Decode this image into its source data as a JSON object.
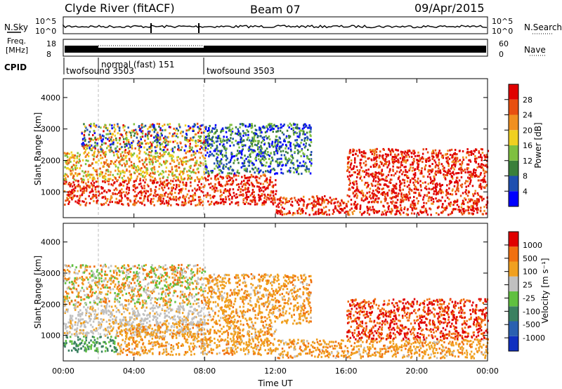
{
  "header": {
    "station": "Clyde River (fitACF)",
    "beam": "Beam 07",
    "date": "09/Apr/2015"
  },
  "noise_panel": {
    "left_label": "N.Sky",
    "right_label": "N.Search",
    "left_ticks": [
      "10^5",
      "10^0"
    ],
    "right_ticks": [
      "10^5",
      "10^0"
    ]
  },
  "freq_panel": {
    "left_label_1": "Freq.",
    "left_label_2": "[MHz]",
    "right_label": "Nave",
    "left_ticks": [
      "18",
      "8"
    ],
    "right_ticks": [
      "60",
      "0"
    ]
  },
  "cpid": {
    "label": "CPID",
    "segments": [
      {
        "name": "twofsound 3503",
        "start_hour": 0.0
      },
      {
        "name": "normal (fast) 151",
        "start_hour": 2.0
      },
      {
        "name": "twofsound 3503",
        "start_hour": 8.0
      }
    ]
  },
  "chart_data": [
    {
      "type": "heatmap",
      "quantity": "Power",
      "ylabel": "Slant Range [km]",
      "xlabel": "Time UT",
      "x_ticks": [
        "00:00",
        "04:00",
        "08:00",
        "12:00",
        "16:00",
        "20:00",
        "00:00"
      ],
      "x_range_hours": [
        0,
        24
      ],
      "y_ticks": [
        1000,
        2000,
        3000,
        4000
      ],
      "ylim": [
        180,
        4600
      ],
      "colorbar": {
        "label": "Power [dB]",
        "ticks": [
          4,
          8,
          12,
          16,
          20,
          24,
          28
        ],
        "range": [
          0,
          30
        ],
        "colors": [
          "#0000ff",
          "#1f4fb0",
          "#3a7f3a",
          "#7fc040",
          "#f0d020",
          "#f09020",
          "#e85010",
          "#e00000"
        ]
      },
      "echo_bands": [
        {
          "hours": [
            0,
            8
          ],
          "range_km": [
            600,
            1400
          ],
          "level": "high"
        },
        {
          "hours": [
            0,
            8
          ],
          "range_km": [
            1400,
            2300
          ],
          "level": "medium"
        },
        {
          "hours": [
            1,
            8
          ],
          "range_km": [
            2300,
            3200
          ],
          "level": "mixed"
        },
        {
          "hours": [
            8,
            12
          ],
          "range_km": [
            600,
            1600
          ],
          "level": "high"
        },
        {
          "hours": [
            8,
            14
          ],
          "range_km": [
            1600,
            3200
          ],
          "level": "low"
        },
        {
          "hours": [
            12,
            24
          ],
          "range_km": [
            300,
            900
          ],
          "level": "high"
        },
        {
          "hours": [
            16,
            24
          ],
          "range_km": [
            900,
            2400
          ],
          "level": "high"
        }
      ]
    },
    {
      "type": "heatmap",
      "quantity": "Velocity",
      "ylabel": "Slant Range [km]",
      "xlabel": "Time UT",
      "x_ticks": [
        "00:00",
        "04:00",
        "08:00",
        "12:00",
        "16:00",
        "20:00",
        "00:00"
      ],
      "x_range_hours": [
        0,
        24
      ],
      "y_ticks": [
        1000,
        2000,
        3000,
        4000
      ],
      "ylim": [
        180,
        4600
      ],
      "colorbar": {
        "label": "Velocity [m s⁻¹]",
        "ticks": [
          "1000",
          "500",
          "100",
          "25",
          "-25",
          "-100",
          "-500",
          "-1000"
        ],
        "colors": [
          "#1030c0",
          "#2a60b0",
          "#3a8060",
          "#60c040",
          "#c0c0c0",
          "#f0a020",
          "#f07010",
          "#e00000"
        ]
      },
      "echo_bands": [
        {
          "hours": [
            0,
            3
          ],
          "range_km": [
            500,
            1000
          ],
          "level": "green"
        },
        {
          "hours": [
            0,
            8
          ],
          "range_km": [
            1000,
            2000
          ],
          "level": "gray"
        },
        {
          "hours": [
            0,
            8
          ],
          "range_km": [
            2000,
            3300
          ],
          "level": "mixed"
        },
        {
          "hours": [
            3,
            12
          ],
          "range_km": [
            400,
            1400
          ],
          "level": "orange"
        },
        {
          "hours": [
            8,
            14
          ],
          "range_km": [
            1400,
            3000
          ],
          "level": "orange"
        },
        {
          "hours": [
            12,
            24
          ],
          "range_km": [
            300,
            900
          ],
          "level": "orange"
        },
        {
          "hours": [
            16,
            24
          ],
          "range_km": [
            900,
            2200
          ],
          "level": "red"
        }
      ]
    }
  ]
}
